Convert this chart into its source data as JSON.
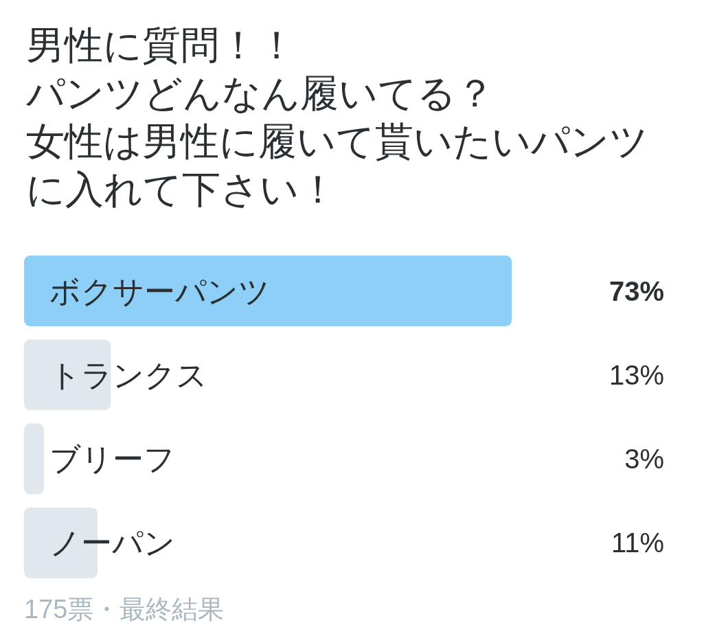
{
  "chart_data": {
    "type": "bar",
    "orientation": "horizontal",
    "title": "男性に質問！！パンツどんなん履いてる？女性は男性に履いて貰いたいパンツに入れて下さい！",
    "categories": [
      "ボクサーパンツ",
      "トランクス",
      "ブリーフ",
      "ノーパン"
    ],
    "values": [
      73,
      13,
      3,
      11
    ],
    "value_labels": [
      "73%",
      "13%",
      "3%",
      "11%"
    ],
    "colors": [
      "#8ecff8",
      "#e1e8ed",
      "#e1e8ed",
      "#e1e8ed"
    ],
    "annotations": [
      "175票・最終結果"
    ]
  }
}
